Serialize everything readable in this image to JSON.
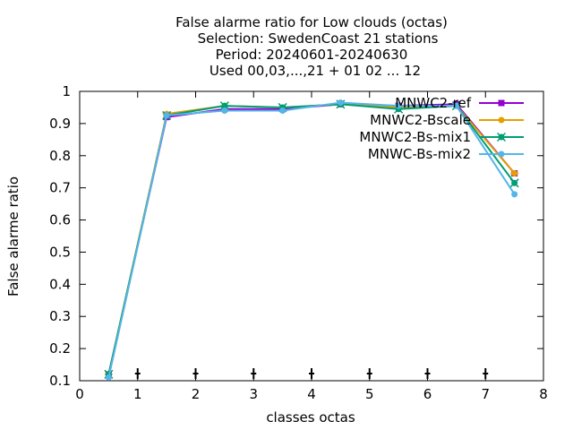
{
  "chart_data": {
    "type": "line",
    "title_lines": [
      "False alarme ratio  for Low clouds (octas)",
      "Selection: SwedenCoast     21 stations",
      "Period: 20240601-20240630",
      "Used 00,03,...,21 + 01 02 ... 12"
    ],
    "xlabel": "classes octas",
    "ylabel": "False alarme ratio",
    "xlim": [
      0,
      8
    ],
    "ylim": [
      0.1,
      1
    ],
    "xticks": [
      0,
      1,
      2,
      3,
      4,
      5,
      6,
      7,
      8
    ],
    "xtick_labels": [
      "0",
      "1",
      "2",
      "3",
      "4",
      "5",
      "6",
      "7",
      "8"
    ],
    "yticks": [
      0.1,
      0.2,
      0.3,
      0.4,
      0.5,
      0.6,
      0.7,
      0.8,
      0.9,
      1
    ],
    "ytick_labels": [
      "0.1",
      "0.2",
      "0.3",
      "0.4",
      "0.5",
      "0.6",
      "0.7",
      "0.8",
      "0.9",
      "1"
    ],
    "grid": false,
    "legend_position": "top-right",
    "x": [
      0.5,
      1.5,
      2.5,
      3.5,
      4.5,
      5.5,
      6.5,
      7.5
    ],
    "series": [
      {
        "name": "MNWC2-ref",
        "color": "#9400d3",
        "marker": "plus",
        "values": [
          0.12,
          0.92,
          0.945,
          0.945,
          0.96,
          0.955,
          0.96,
          0.745
        ]
      },
      {
        "name": "MNWC2-Bscale",
        "color": "#e69f00",
        "marker": "x",
        "values": [
          0.12,
          0.93,
          0.955,
          0.95,
          0.96,
          0.95,
          0.955,
          0.745
        ]
      },
      {
        "name": "MNWC2-Bs-mix1",
        "color": "#009e73",
        "marker": "star",
        "values": [
          0.12,
          0.925,
          0.955,
          0.95,
          0.96,
          0.945,
          0.955,
          0.715
        ]
      },
      {
        "name": "MNWC-Bs-mix2",
        "color": "#56b4e9",
        "marker": "circle",
        "values": [
          0.11,
          0.925,
          0.94,
          0.94,
          0.965,
          0.955,
          0.955,
          0.68
        ]
      }
    ],
    "baseline_markers": {
      "color": "#000000",
      "x": [
        1,
        2,
        3,
        4,
        5,
        6,
        7
      ],
      "y": 0.1
    }
  }
}
